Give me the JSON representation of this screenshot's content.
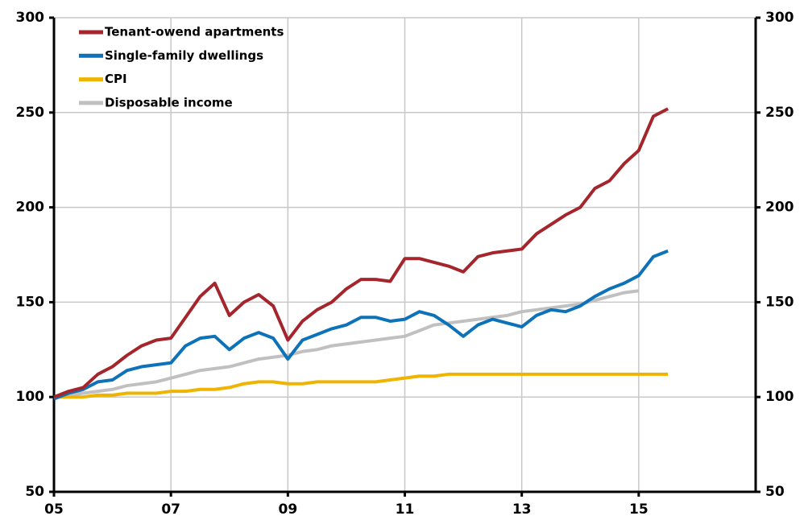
{
  "chart_data": {
    "type": "line",
    "x": [
      2005,
      2005.25,
      2005.5,
      2005.75,
      2006,
      2006.25,
      2006.5,
      2006.75,
      2007,
      2007.25,
      2007.5,
      2007.75,
      2008,
      2008.25,
      2008.5,
      2008.75,
      2009,
      2009.25,
      2009.5,
      2009.75,
      2010,
      2010.25,
      2010.5,
      2010.75,
      2011,
      2011.25,
      2011.5,
      2011.75,
      2012,
      2012.25,
      2012.5,
      2012.75,
      2013,
      2013.25,
      2013.5,
      2013.75,
      2014,
      2014.25,
      2014.5,
      2014.75,
      2015,
      2015.25,
      2015.5
    ],
    "series": [
      {
        "name": "Tenant-owend apartments",
        "color": "#a4262c",
        "values": [
          100,
          103,
          105,
          112,
          116,
          122,
          127,
          130,
          131,
          142,
          153,
          160,
          143,
          150,
          154,
          148,
          130,
          140,
          146,
          150,
          157,
          162,
          162,
          161,
          173,
          173,
          171,
          169,
          166,
          174,
          176,
          177,
          178,
          186,
          191,
          196,
          200,
          210,
          214,
          223,
          230,
          248,
          252
        ]
      },
      {
        "name": "Single-family dwellings",
        "color": "#0d72b8",
        "values": [
          99,
          102,
          104,
          108,
          109,
          114,
          116,
          117,
          118,
          127,
          131,
          132,
          125,
          131,
          134,
          131,
          120,
          130,
          133,
          136,
          138,
          142,
          142,
          140,
          141,
          145,
          143,
          138,
          132,
          138,
          141,
          139,
          137,
          143,
          146,
          145,
          148,
          153,
          157,
          160,
          164,
          174,
          177
        ]
      },
      {
        "name": "CPI",
        "color": "#efb400",
        "values": [
          100,
          100,
          100,
          101,
          101,
          102,
          102,
          102,
          103,
          103,
          104,
          104,
          105,
          107,
          108,
          108,
          107,
          107,
          108,
          108,
          108,
          108,
          108,
          109,
          110,
          111,
          111,
          112,
          112,
          112,
          112,
          112,
          112,
          112,
          112,
          112,
          112,
          112,
          112,
          112,
          112,
          112,
          112
        ]
      },
      {
        "name": "Disposable income",
        "color": "#c0c0c0",
        "values": [
          100,
          101,
          102,
          103,
          104,
          106,
          107,
          108,
          110,
          112,
          114,
          115,
          116,
          118,
          120,
          121,
          122,
          124,
          125,
          127,
          128,
          129,
          130,
          131,
          132,
          135,
          138,
          139,
          140,
          141,
          142,
          143,
          145,
          146,
          147,
          148,
          149,
          151,
          153,
          155,
          156,
          null,
          null
        ]
      }
    ],
    "xlim": [
      2005,
      2017
    ],
    "xticks": [
      {
        "value": 2005,
        "label": "05"
      },
      {
        "value": 2007,
        "label": "07"
      },
      {
        "value": 2009,
        "label": "09"
      },
      {
        "value": 2011,
        "label": "11"
      },
      {
        "value": 2013,
        "label": "13"
      },
      {
        "value": 2015,
        "label": "15"
      }
    ],
    "ylim": [
      50,
      300
    ],
    "yticks": [
      50,
      100,
      150,
      200,
      250,
      300
    ],
    "grid": true
  }
}
